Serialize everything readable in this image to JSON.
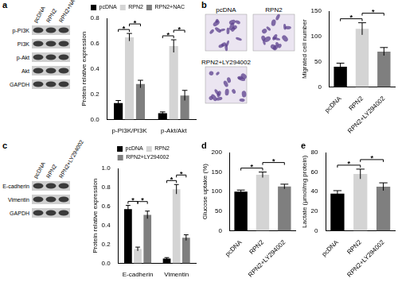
{
  "blots": [
    {
      "panel": "a",
      "lanes": [
        "pcDNA",
        "RPN2",
        "RPN2+NAC"
      ],
      "rows": [
        "p-PI3K",
        "PI3K",
        "p-Akt",
        "Akt",
        "GAPDH"
      ]
    },
    {
      "panel": "c",
      "lanes": [
        "pcDNA",
        "RPN2",
        "RPN2+LY294002"
      ],
      "rows": [
        "E-cadherin",
        "Vimentin",
        "GAPDH"
      ]
    }
  ],
  "micrographs": {
    "panel": "b",
    "labels": [
      "pcDNA",
      "RPN2",
      "RPN2+LY294002"
    ]
  },
  "chart_data": [
    {
      "panel": "a",
      "type": "bar",
      "y_label": "Protein relative expression",
      "categories": [
        "p-PI3K/PI3K",
        "p-Akt/Akt"
      ],
      "series": [
        {
          "name": "pcDNA",
          "color": "#000000",
          "values": [
            0.13,
            0.05
          ],
          "errors": [
            0.02,
            0.01
          ]
        },
        {
          "name": "RPN2",
          "color": "#d4d4d4",
          "values": [
            0.65,
            0.58
          ],
          "errors": [
            0.03,
            0.05
          ]
        },
        {
          "name": "RPN2+NAC",
          "color": "#7f7f7f",
          "values": [
            0.28,
            0.19
          ],
          "errors": [
            0.03,
            0.04
          ]
        }
      ],
      "ylim": [
        0,
        0.8
      ],
      "yticks": [
        {
          "value": 0,
          "label": "0.0"
        },
        {
          "value": 0.2,
          "label": "0.2"
        },
        {
          "value": 0.4,
          "label": "0.4"
        },
        {
          "value": 0.6,
          "label": "0.6"
        },
        {
          "value": 0.8,
          "label": "0.8"
        }
      ],
      "grid": false,
      "legend": "top",
      "significance": [
        {
          "category": "p-PI3K/PI3K",
          "from": "pcDNA",
          "to": "RPN2",
          "label": "*"
        },
        {
          "category": "p-PI3K/PI3K",
          "from": "RPN2",
          "to": "RPN2+NAC",
          "label": "*"
        },
        {
          "category": "p-Akt/Akt",
          "from": "pcDNA",
          "to": "RPN2",
          "label": "*"
        },
        {
          "category": "p-Akt/Akt",
          "from": "RPN2",
          "to": "RPN2+NAC",
          "label": "*"
        }
      ]
    },
    {
      "panel": "b",
      "type": "bar",
      "y_label": "Migrated cell number",
      "categories": [
        "pcDNA",
        "RPN2",
        "RPN2+LY294002"
      ],
      "values": [
        40,
        115,
        70
      ],
      "errors": [
        7,
        12,
        8
      ],
      "colors": [
        "#000000",
        "#d4d4d4",
        "#7f7f7f"
      ],
      "ylim": [
        0,
        150
      ],
      "yticks": [
        0,
        50,
        100,
        150
      ],
      "grid": false,
      "significance": [
        {
          "from": "pcDNA",
          "to": "RPN2",
          "label": "*"
        },
        {
          "from": "RPN2",
          "to": "RPN2+LY294002",
          "label": "*"
        }
      ]
    },
    {
      "panel": "c",
      "type": "bar",
      "y_label": "Protein relative expression",
      "categories": [
        "E-cadherin",
        "Vimentin"
      ],
      "series": [
        {
          "name": "pcDNA",
          "color": "#000000",
          "values": [
            0.57,
            0.05
          ],
          "errors": [
            0.04,
            0.01
          ]
        },
        {
          "name": "RPN2",
          "color": "#d4d4d4",
          "values": [
            0.15,
            0.78
          ],
          "errors": [
            0.02,
            0.05
          ]
        },
        {
          "name": "RPN2+LY294002",
          "color": "#7f7f7f",
          "values": [
            0.51,
            0.27
          ],
          "errors": [
            0.04,
            0.03
          ]
        }
      ],
      "ylim": [
        0,
        1.0
      ],
      "yticks": [
        {
          "value": 0,
          "label": "0.0"
        },
        {
          "value": 0.2,
          "label": "0.2"
        },
        {
          "value": 0.4,
          "label": "0.4"
        },
        {
          "value": 0.6,
          "label": "0.6"
        },
        {
          "value": 0.8,
          "label": "0.8"
        },
        {
          "value": 1.0,
          "label": "1.0"
        }
      ],
      "grid": false,
      "legend": "top",
      "significance": [
        {
          "category": "E-cadherin",
          "from": "pcDNA",
          "to": "RPN2",
          "label": "*"
        },
        {
          "category": "E-cadherin",
          "from": "RPN2",
          "to": "RPN2+LY294002",
          "label": "*"
        },
        {
          "category": "Vimentin",
          "from": "pcDNA",
          "to": "RPN2",
          "label": "*"
        },
        {
          "category": "Vimentin",
          "from": "RPN2",
          "to": "RPN2+LY294002",
          "label": "*"
        }
      ]
    },
    {
      "panel": "d",
      "type": "bar",
      "y_label": "Glucose uptake (%)",
      "categories": [
        "pcDNA",
        "RPN2",
        "RPN2+LY294002"
      ],
      "values": [
        100,
        143,
        113
      ],
      "errors": [
        4,
        7,
        6
      ],
      "colors": [
        "#000000",
        "#d4d4d4",
        "#7f7f7f"
      ],
      "ylim": [
        0,
        200
      ],
      "yticks": [
        0,
        50,
        100,
        150,
        200
      ],
      "grid": false,
      "significance": [
        {
          "from": "pcDNA",
          "to": "RPN2",
          "label": "*"
        },
        {
          "from": "RPN2",
          "to": "RPN2+LY294002",
          "label": "*"
        }
      ]
    },
    {
      "panel": "e",
      "type": "bar",
      "y_label": "Lactate (μmol/mg protein)",
      "categories": [
        "pcDNA",
        "RPN2",
        "RPN2+LY294002"
      ],
      "values": [
        38,
        58,
        45
      ],
      "errors": [
        3,
        5,
        4
      ],
      "colors": [
        "#000000",
        "#d4d4d4",
        "#7f7f7f"
      ],
      "ylim": [
        0,
        80
      ],
      "yticks": [
        0,
        20,
        40,
        60,
        80
      ],
      "grid": false,
      "significance": [
        {
          "from": "pcDNA",
          "to": "RPN2",
          "label": "*"
        },
        {
          "from": "RPN2",
          "to": "RPN2+LY294002",
          "label": "*"
        }
      ]
    }
  ]
}
